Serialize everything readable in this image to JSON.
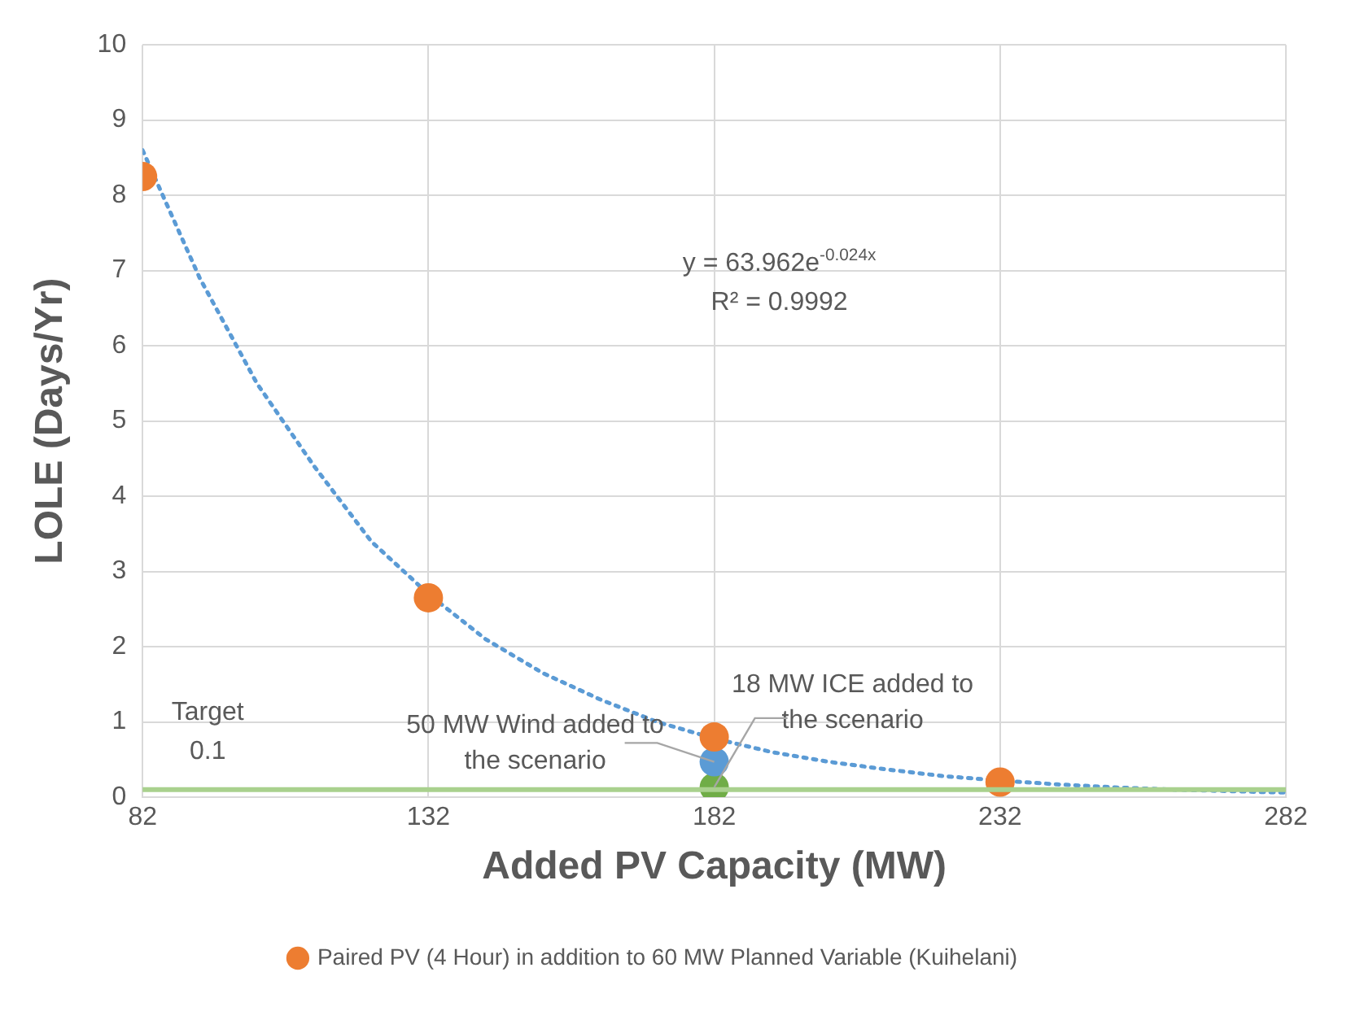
{
  "chart_data": {
    "type": "scatter",
    "xlabel": "Added PV Capacity (MW)",
    "ylabel": "LOLE (Days/Yr)",
    "xlim": [
      82,
      282
    ],
    "xticks": [
      82,
      132,
      182,
      232,
      282
    ],
    "ylim": [
      0,
      10
    ],
    "yticks": [
      0,
      1,
      2,
      3,
      4,
      5,
      6,
      7,
      8,
      9,
      10
    ],
    "grid": true,
    "legend": "bottom",
    "marker": "circle",
    "series": [
      {
        "type": "line",
        "color": "#5b9bd5",
        "line_style": "dotted",
        "marker": "none",
        "x": [
          82,
          92,
          102,
          112,
          122,
          132,
          142,
          152,
          162,
          172,
          182,
          192,
          202,
          212,
          222,
          232,
          242,
          252,
          262,
          272,
          282
        ],
        "values": [
          8.6,
          6.9,
          5.5,
          4.4,
          3.4,
          2.7,
          2.1,
          1.65,
          1.3,
          1.0,
          0.78,
          0.6,
          0.47,
          0.37,
          0.28,
          0.22,
          0.17,
          0.13,
          0.1,
          0.08,
          0.06
        ]
      },
      {
        "name": "Paired PV (4 Hour) in addition to 60 MW Planned Variable (Kuihelani)",
        "color": "#ed7d31",
        "x": [
          82,
          132,
          182,
          232
        ],
        "values": [
          8.25,
          2.65,
          0.8,
          0.2
        ]
      },
      {
        "color": "#5b9bd5",
        "x": [
          182
        ],
        "values": [
          0.47
        ]
      },
      {
        "color": "#70ad47",
        "x": [
          182
        ],
        "values": [
          0.13
        ]
      }
    ],
    "ref_lines": [
      {
        "axis": "y",
        "value": 0.1,
        "label": "Target 0.1",
        "color": "#a9d18e"
      }
    ],
    "annotations": [
      "y = 63.962e$^{-0.024x}$",
      "R² = 0.9992",
      {
        "text": "50 MW Wind added to the scenario",
        "x": 182,
        "y": 0.47
      },
      {
        "text": "18 MW ICE added to the scenario",
        "x": 182,
        "y": 0.13
      }
    ]
  }
}
